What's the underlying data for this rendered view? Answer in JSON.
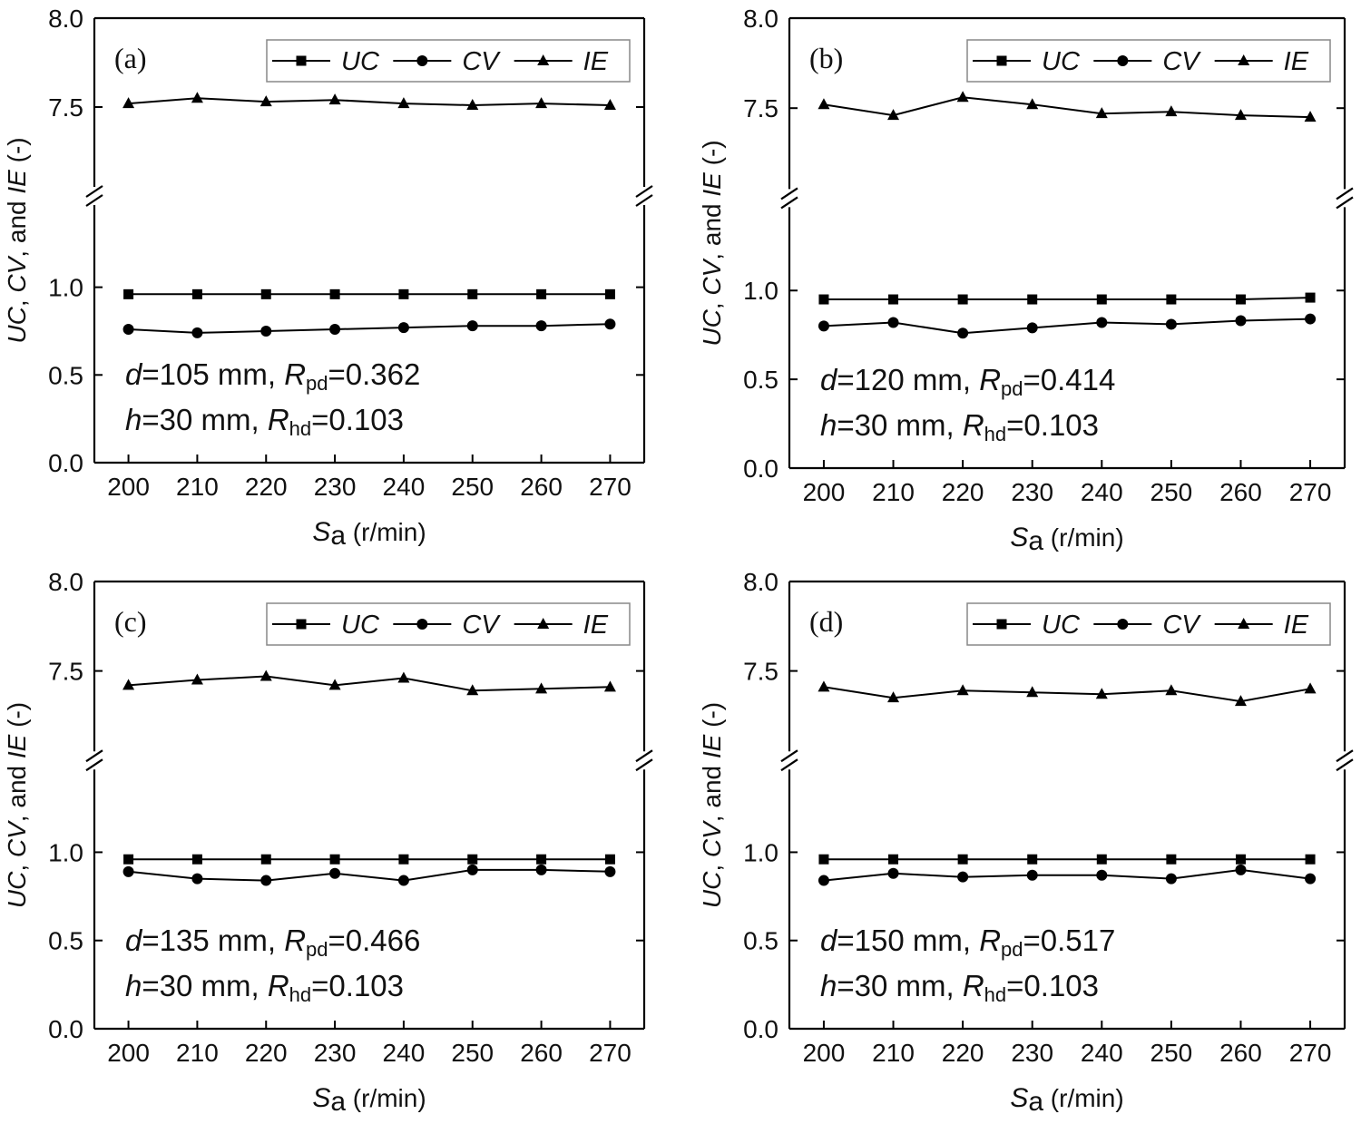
{
  "chart_data": [
    {
      "type": "line",
      "panel_label": "(a)",
      "categories": [
        200,
        210,
        220,
        230,
        240,
        250,
        260,
        270
      ],
      "series": [
        {
          "name": "UC",
          "marker": "square",
          "values": [
            0.96,
            0.96,
            0.96,
            0.96,
            0.96,
            0.96,
            0.96,
            0.96
          ]
        },
        {
          "name": "CV",
          "marker": "circle",
          "values": [
            0.76,
            0.74,
            0.75,
            0.76,
            0.77,
            0.78,
            0.78,
            0.79
          ]
        },
        {
          "name": "IE",
          "marker": "triangle",
          "values": [
            7.52,
            7.55,
            7.53,
            7.54,
            7.52,
            7.51,
            7.52,
            7.51
          ]
        }
      ],
      "annotation": {
        "line1": {
          "var": "d",
          "val": "=105 mm, ",
          "rvar": "R",
          "rsub": "pd",
          "rval": "=0.362"
        },
        "line2": {
          "var": "h",
          "val": "=30 mm, ",
          "rvar": "R",
          "rsub": "hd",
          "rval": "=0.103"
        }
      }
    },
    {
      "type": "line",
      "panel_label": "(b)",
      "categories": [
        200,
        210,
        220,
        230,
        240,
        250,
        260,
        270
      ],
      "series": [
        {
          "name": "UC",
          "marker": "square",
          "values": [
            0.95,
            0.95,
            0.95,
            0.95,
            0.95,
            0.95,
            0.95,
            0.96
          ]
        },
        {
          "name": "CV",
          "marker": "circle",
          "values": [
            0.8,
            0.82,
            0.76,
            0.79,
            0.82,
            0.81,
            0.83,
            0.84
          ]
        },
        {
          "name": "IE",
          "marker": "triangle",
          "values": [
            7.52,
            7.46,
            7.56,
            7.52,
            7.47,
            7.48,
            7.46,
            7.45
          ]
        }
      ],
      "annotation": {
        "line1": {
          "var": "d",
          "val": "=120 mm, ",
          "rvar": "R",
          "rsub": "pd",
          "rval": "=0.414"
        },
        "line2": {
          "var": "h",
          "val": "=30 mm, ",
          "rvar": "R",
          "rsub": "hd",
          "rval": "=0.103"
        }
      }
    },
    {
      "type": "line",
      "panel_label": "(c)",
      "categories": [
        200,
        210,
        220,
        230,
        240,
        250,
        260,
        270
      ],
      "series": [
        {
          "name": "UC",
          "marker": "square",
          "values": [
            0.96,
            0.96,
            0.96,
            0.96,
            0.96,
            0.96,
            0.96,
            0.96
          ]
        },
        {
          "name": "CV",
          "marker": "circle",
          "values": [
            0.89,
            0.85,
            0.84,
            0.88,
            0.84,
            0.9,
            0.9,
            0.89
          ]
        },
        {
          "name": "IE",
          "marker": "triangle",
          "values": [
            7.42,
            7.45,
            7.47,
            7.42,
            7.46,
            7.39,
            7.4,
            7.41
          ]
        }
      ],
      "annotation": {
        "line1": {
          "var": "d",
          "val": "=135 mm, ",
          "rvar": "R",
          "rsub": "pd",
          "rval": "=0.466"
        },
        "line2": {
          "var": "h",
          "val": "=30 mm, ",
          "rvar": "R",
          "rsub": "hd",
          "rval": "=0.103"
        }
      }
    },
    {
      "type": "line",
      "panel_label": "(d)",
      "categories": [
        200,
        210,
        220,
        230,
        240,
        250,
        260,
        270
      ],
      "series": [
        {
          "name": "UC",
          "marker": "square",
          "values": [
            0.96,
            0.96,
            0.96,
            0.96,
            0.96,
            0.96,
            0.96,
            0.96
          ]
        },
        {
          "name": "CV",
          "marker": "circle",
          "values": [
            0.84,
            0.88,
            0.86,
            0.87,
            0.87,
            0.85,
            0.9,
            0.85
          ]
        },
        {
          "name": "IE",
          "marker": "triangle",
          "values": [
            7.41,
            7.35,
            7.39,
            7.38,
            7.37,
            7.39,
            7.33,
            7.4
          ]
        }
      ],
      "annotation": {
        "line1": {
          "var": "d",
          "val": "=150 mm, ",
          "rvar": "R",
          "rsub": "pd",
          "rval": "=0.517"
        },
        "line2": {
          "var": "h",
          "val": "=30 mm, ",
          "rvar": "R",
          "rsub": "hd",
          "rval": "=0.103"
        }
      }
    }
  ],
  "axes": {
    "y_ticks_lower": [
      "0.0",
      "0.5",
      "1.0"
    ],
    "y_ticks_upper": [
      "7.5",
      "8.0"
    ],
    "x_ticks": [
      "200",
      "210",
      "220",
      "230",
      "240",
      "250",
      "260",
      "270"
    ],
    "ylabel_parts": {
      "uc": "UC",
      "sep1": ", ",
      "cv": "CV",
      "sep2": ", and ",
      "ie": "IE",
      "unit": " (-)"
    },
    "xlabel_parts": {
      "s": "S",
      "sub": "a",
      "unit": " (r/min)"
    },
    "y_break": {
      "lower_range": [
        0,
        1.5
      ],
      "upper_range": [
        7.0,
        8.0
      ]
    }
  },
  "legend": {
    "placement": "top-right",
    "labels": [
      "UC",
      "CV",
      "IE"
    ]
  },
  "colors": {
    "line": "#000000",
    "frame": "#000000",
    "legend_border": "#888888"
  }
}
